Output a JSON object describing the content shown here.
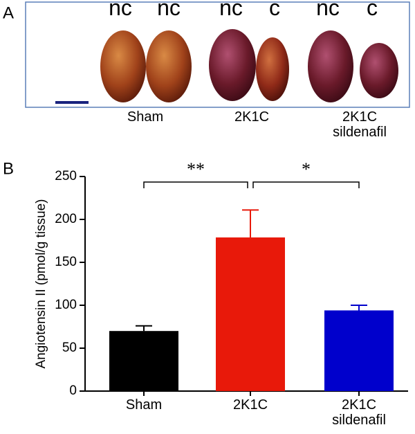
{
  "panel_a": {
    "label": "A",
    "top_labels": [
      "nc",
      "nc",
      "nc",
      "c",
      "nc",
      "c"
    ],
    "group_labels": [
      "Sham",
      "2K1C",
      "2K1C\nsildenafil"
    ]
  },
  "panel_b_label": "B",
  "chart_data": {
    "type": "bar",
    "y_label": "Angiotensin II (pmol/g tissue)",
    "categories": [
      "Sham",
      "2K1C",
      "2K1C\nsildenafil"
    ],
    "values": [
      70,
      179,
      94
    ],
    "errors": [
      6,
      32,
      6
    ],
    "colors": [
      "#000000",
      "#e8190a",
      "#0000cc"
    ],
    "ylim": [
      0,
      250
    ],
    "yticks": [
      0,
      50,
      100,
      150,
      200,
      250
    ],
    "annotations": [
      {
        "text": "**"
      },
      {
        "text": "*"
      }
    ]
  }
}
